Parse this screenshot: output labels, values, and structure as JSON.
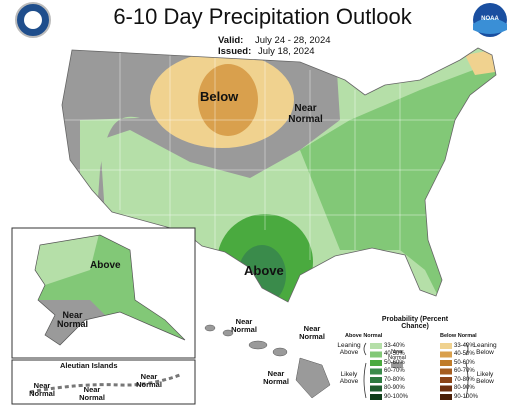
{
  "header": {
    "title": "6-10 Day Precipitation Outlook",
    "valid_label": "Valid:",
    "valid_dates": "July 24 - 28, 2024",
    "issued_label": "Issued:",
    "issued_date": "July 18, 2024",
    "noaa_logo": "NOAA"
  },
  "map_labels": {
    "conus_below": "Below",
    "conus_near_normal": "Near Normal",
    "conus_above": "Above",
    "alaska_above": "Above",
    "alaska_near_normal": "Near Normal",
    "aleutian_title": "Aleutian Islands",
    "aleutian_near_normal": [
      "Near Normal",
      "Near Normal",
      "Near Normal"
    ],
    "hawaii_near_normal": [
      "Near Normal",
      "Near Normal",
      "Near Normal"
    ]
  },
  "legend": {
    "title": "Probability (Percent Chance)",
    "above_heading": "Above Normal",
    "below_heading": "Below Normal",
    "above_ranges": [
      "33-40%",
      "40-50%",
      "50-60%",
      "60-70%",
      "70-80%",
      "80-90%",
      "90-100%"
    ],
    "below_ranges": [
      "33-40%",
      "40-50%",
      "50-60%",
      "60-70%",
      "70-80%",
      "80-90%",
      "90-100%"
    ],
    "leaning_above": "Leaning Above",
    "likely_above": "Likely Above",
    "near_normal": "Near Normal",
    "leaning_below": "Leaning Below",
    "likely_below": "Likely Below"
  }
}
